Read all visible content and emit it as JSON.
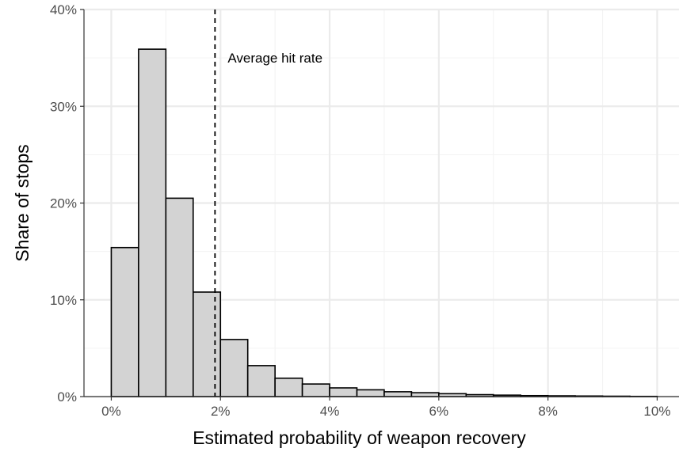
{
  "chart_data": {
    "type": "bar",
    "subtype": "histogram",
    "xlabel": "Estimated probability of weapon recovery",
    "ylabel": "Share of stops",
    "xlim": [
      -0.5,
      10.4
    ],
    "ylim": [
      0,
      40
    ],
    "x_ticks": [
      0,
      2,
      4,
      6,
      8,
      10
    ],
    "x_tick_labels": [
      "0%",
      "2%",
      "4%",
      "6%",
      "8%",
      "10%"
    ],
    "y_ticks": [
      0,
      10,
      20,
      30,
      40
    ],
    "y_tick_labels": [
      "0%",
      "10%",
      "20%",
      "30%",
      "40%"
    ],
    "bin_width": 0.5,
    "bins": [
      {
        "start": 0.0,
        "end": 0.5,
        "value": 15.4
      },
      {
        "start": 0.5,
        "end": 1.0,
        "value": 35.9
      },
      {
        "start": 1.0,
        "end": 1.5,
        "value": 20.5
      },
      {
        "start": 1.5,
        "end": 2.0,
        "value": 10.8
      },
      {
        "start": 2.0,
        "end": 2.5,
        "value": 5.9
      },
      {
        "start": 2.5,
        "end": 3.0,
        "value": 3.2
      },
      {
        "start": 3.0,
        "end": 3.5,
        "value": 1.9
      },
      {
        "start": 3.5,
        "end": 4.0,
        "value": 1.3
      },
      {
        "start": 4.0,
        "end": 4.5,
        "value": 0.9
      },
      {
        "start": 4.5,
        "end": 5.0,
        "value": 0.7
      },
      {
        "start": 5.0,
        "end": 5.5,
        "value": 0.5
      },
      {
        "start": 5.5,
        "end": 6.0,
        "value": 0.4
      },
      {
        "start": 6.0,
        "end": 6.5,
        "value": 0.3
      },
      {
        "start": 6.5,
        "end": 7.0,
        "value": 0.2
      },
      {
        "start": 7.0,
        "end": 7.5,
        "value": 0.15
      },
      {
        "start": 7.5,
        "end": 8.0,
        "value": 0.1
      },
      {
        "start": 8.0,
        "end": 8.5,
        "value": 0.08
      },
      {
        "start": 8.5,
        "end": 9.0,
        "value": 0.06
      },
      {
        "start": 9.0,
        "end": 9.5,
        "value": 0.04
      },
      {
        "start": 9.5,
        "end": 10.0,
        "value": 0.02
      }
    ],
    "reference_line": {
      "x": 1.9,
      "style": "dashed",
      "label": "Average hit rate"
    },
    "grid": true,
    "colors": {
      "bar_fill": "#d3d3d3",
      "bar_stroke": "#000000",
      "grid": "#ebebeb"
    }
  }
}
